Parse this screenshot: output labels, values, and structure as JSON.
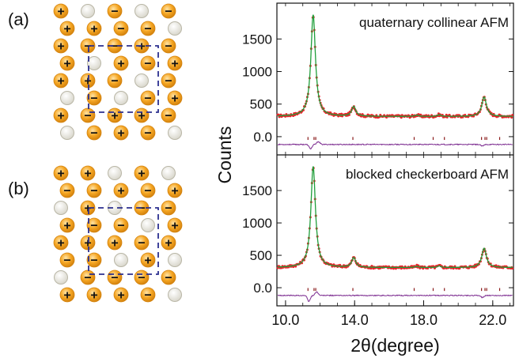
{
  "colors": {
    "atom_orange": "#F5A623",
    "atom_orange_dark": "#D4830E",
    "atom_gray": "#D9D7CC",
    "cell_box": "#2B2F8F",
    "observed": "#E8252B",
    "calculated": "#1F9E3A",
    "difference": "#7B2A8F",
    "tick_marks": "#8B1C1C"
  },
  "panel_labels": {
    "a": "(a)",
    "b": "(b)"
  },
  "lattice_a": {
    "plus_sign": "+",
    "minus_sign": "−",
    "atoms": [
      {
        "c": 0,
        "r": 0,
        "s": "+"
      },
      {
        "c": 1,
        "r": 0,
        "s": "o"
      },
      {
        "c": 2,
        "r": 0,
        "s": "−"
      },
      {
        "c": 3,
        "r": 0,
        "s": "o"
      },
      {
        "c": 4,
        "r": 0,
        "s": "−"
      },
      {
        "c": 0,
        "r": 1,
        "s": "+"
      },
      {
        "c": 1,
        "r": 1,
        "s": "+"
      },
      {
        "c": 2,
        "r": 1,
        "s": "−"
      },
      {
        "c": 3,
        "r": 1,
        "s": "−"
      },
      {
        "c": 4,
        "r": 1,
        "s": "o"
      },
      {
        "c": 0,
        "r": 2,
        "s": "+"
      },
      {
        "c": 1,
        "r": 2,
        "s": "−"
      },
      {
        "c": 2,
        "r": 2,
        "s": "−"
      },
      {
        "c": 3,
        "r": 2,
        "s": "+"
      },
      {
        "c": 4,
        "r": 2,
        "s": "−"
      },
      {
        "c": 0,
        "r": 3,
        "s": "+"
      },
      {
        "c": 1,
        "r": 3,
        "s": "o"
      },
      {
        "c": 2,
        "r": 3,
        "s": "+"
      },
      {
        "c": 3,
        "r": 3,
        "s": "−"
      },
      {
        "c": 4,
        "r": 3,
        "s": "+"
      },
      {
        "c": 0,
        "r": 4,
        "s": "+"
      },
      {
        "c": 1,
        "r": 4,
        "s": "+"
      },
      {
        "c": 2,
        "r": 4,
        "s": "−"
      },
      {
        "c": 3,
        "r": 4,
        "s": "o"
      },
      {
        "c": 4,
        "r": 4,
        "s": "−"
      },
      {
        "c": 0,
        "r": 5,
        "s": "o"
      },
      {
        "c": 1,
        "r": 5,
        "s": "−"
      },
      {
        "c": 2,
        "r": 5,
        "s": "o"
      },
      {
        "c": 3,
        "r": 5,
        "s": "−"
      },
      {
        "c": 4,
        "r": 5,
        "s": "+"
      },
      {
        "c": 0,
        "r": 6,
        "s": "+"
      },
      {
        "c": 1,
        "r": 6,
        "s": "−"
      },
      {
        "c": 2,
        "r": 6,
        "s": "+"
      },
      {
        "c": 3,
        "r": 6,
        "s": "+"
      },
      {
        "c": 4,
        "r": 6,
        "s": "−"
      },
      {
        "c": 0,
        "r": 7,
        "s": "o"
      },
      {
        "c": 1,
        "r": 7,
        "s": "−"
      },
      {
        "c": 2,
        "r": 7,
        "s": "+"
      },
      {
        "c": 3,
        "r": 7,
        "s": "−"
      },
      {
        "c": 4,
        "r": 7,
        "s": "o"
      }
    ]
  },
  "lattice_b": {
    "plus_sign": "+",
    "minus_sign": "−",
    "atoms": [
      {
        "c": 0,
        "r": 0,
        "s": "+"
      },
      {
        "c": 1,
        "r": 0,
        "s": "+"
      },
      {
        "c": 2,
        "r": 0,
        "s": "o"
      },
      {
        "c": 3,
        "r": 0,
        "s": "+"
      },
      {
        "c": 4,
        "r": 0,
        "s": "o"
      },
      {
        "c": 0,
        "r": 1,
        "s": "−"
      },
      {
        "c": 1,
        "r": 1,
        "s": "−"
      },
      {
        "c": 2,
        "r": 1,
        "s": "+"
      },
      {
        "c": 3,
        "r": 1,
        "s": "−"
      },
      {
        "c": 4,
        "r": 1,
        "s": "+"
      },
      {
        "c": 0,
        "r": 2,
        "s": "o"
      },
      {
        "c": 1,
        "r": 2,
        "s": "+"
      },
      {
        "c": 2,
        "r": 2,
        "s": "o"
      },
      {
        "c": 3,
        "r": 2,
        "s": "−"
      },
      {
        "c": 4,
        "r": 2,
        "s": "−"
      },
      {
        "c": 0,
        "r": 3,
        "s": "+"
      },
      {
        "c": 1,
        "r": 3,
        "s": "−"
      },
      {
        "c": 2,
        "r": 3,
        "s": "−"
      },
      {
        "c": 3,
        "r": 3,
        "s": "o"
      },
      {
        "c": 4,
        "r": 3,
        "s": "+"
      },
      {
        "c": 0,
        "r": 4,
        "s": "+"
      },
      {
        "c": 1,
        "r": 4,
        "s": "+"
      },
      {
        "c": 2,
        "r": 4,
        "s": "+"
      },
      {
        "c": 3,
        "r": 4,
        "s": "−"
      },
      {
        "c": 4,
        "r": 4,
        "s": "+"
      },
      {
        "c": 0,
        "r": 5,
        "s": "−"
      },
      {
        "c": 1,
        "r": 5,
        "s": "−"
      },
      {
        "c": 2,
        "r": 5,
        "s": "o"
      },
      {
        "c": 3,
        "r": 5,
        "s": "+"
      },
      {
        "c": 4,
        "r": 5,
        "s": "o"
      },
      {
        "c": 0,
        "r": 6,
        "s": "o"
      },
      {
        "c": 1,
        "r": 6,
        "s": "−"
      },
      {
        "c": 2,
        "r": 6,
        "s": "−"
      },
      {
        "c": 3,
        "r": 6,
        "s": "−"
      },
      {
        "c": 4,
        "r": 6,
        "s": "−"
      },
      {
        "c": 0,
        "r": 7,
        "s": "+"
      },
      {
        "c": 1,
        "r": 7,
        "s": "+"
      },
      {
        "c": 2,
        "r": 7,
        "s": "+"
      },
      {
        "c": 3,
        "r": 7,
        "s": "−"
      },
      {
        "c": 4,
        "r": 7,
        "s": "o"
      }
    ]
  },
  "chart_data": [
    {
      "type": "line",
      "annotation": "quaternary collinear AFM",
      "xlabel": "2θ(degree)",
      "ylabel": "Counts",
      "xlim": [
        9.5,
        23.2
      ],
      "ylim": [
        -280,
        2050
      ],
      "yticks": [
        0.0,
        500,
        1000,
        1500
      ],
      "ytick_labels": [
        "0.0",
        "500",
        "1000",
        "1500"
      ],
      "xticks": [
        10.0,
        14.0,
        18.0,
        22.0
      ],
      "xtick_labels": [
        "10.0",
        "14.0",
        "18.0",
        "22.0"
      ],
      "background": 310,
      "peaks": [
        {
          "x": 11.6,
          "height": 1560,
          "width": 0.16
        },
        {
          "x": 13.95,
          "height": 150,
          "width": 0.14
        },
        {
          "x": 17.6,
          "height": 20,
          "width": 0.12
        },
        {
          "x": 18.9,
          "height": 25,
          "width": 0.12
        },
        {
          "x": 21.5,
          "height": 300,
          "width": 0.16
        }
      ],
      "bragg_ticks": [
        11.3,
        11.65,
        11.75,
        13.9,
        17.45,
        18.55,
        19.2,
        21.35,
        21.55,
        21.65,
        22.4
      ],
      "difference_offset": -120,
      "difference_features": [
        {
          "x": 11.45,
          "amp": -65
        },
        {
          "x": 11.9,
          "amp": 45
        },
        {
          "x": 21.4,
          "amp": -25
        }
      ]
    },
    {
      "type": "line",
      "annotation": "blocked checkerboard AFM",
      "xlabel": "2θ(degree)",
      "ylabel": "Counts",
      "xlim": [
        9.5,
        23.2
      ],
      "ylim": [
        -280,
        2050
      ],
      "yticks": [
        0.0,
        500,
        1000,
        1500
      ],
      "ytick_labels": [
        "0.0",
        "500",
        "1000",
        "1500"
      ],
      "xticks": [
        10.0,
        14.0,
        18.0,
        22.0
      ],
      "xtick_labels": [
        "10.0",
        "14.0",
        "18.0",
        "22.0"
      ],
      "background": 310,
      "peaks": [
        {
          "x": 11.6,
          "height": 1560,
          "width": 0.16
        },
        {
          "x": 13.95,
          "height": 150,
          "width": 0.14
        },
        {
          "x": 17.6,
          "height": 20,
          "width": 0.12
        },
        {
          "x": 18.9,
          "height": 25,
          "width": 0.12
        },
        {
          "x": 21.5,
          "height": 300,
          "width": 0.16
        }
      ],
      "bragg_ticks": [
        11.3,
        11.65,
        11.75,
        13.9,
        17.45,
        18.55,
        19.2,
        21.35,
        21.55,
        21.65,
        22.4
      ],
      "difference_offset": -120,
      "difference_features": [
        {
          "x": 11.35,
          "amp": -90
        },
        {
          "x": 11.8,
          "amp": 55
        },
        {
          "x": 21.4,
          "amp": -30
        }
      ]
    }
  ]
}
